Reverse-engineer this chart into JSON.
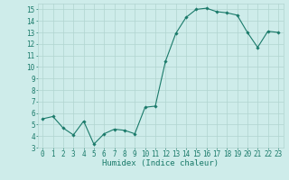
{
  "title": "",
  "xlabel": "Humidex (Indice chaleur)",
  "x_values": [
    0,
    1,
    2,
    3,
    4,
    5,
    6,
    7,
    8,
    9,
    10,
    11,
    12,
    13,
    14,
    15,
    16,
    17,
    18,
    19,
    20,
    21,
    22,
    23
  ],
  "y_values": [
    5.5,
    5.7,
    4.7,
    4.1,
    5.3,
    3.3,
    4.2,
    4.6,
    4.5,
    4.2,
    6.5,
    6.6,
    10.5,
    12.9,
    14.3,
    15.0,
    15.1,
    14.8,
    14.7,
    14.5,
    13.0,
    11.7,
    13.1,
    13.0
  ],
  "line_color": "#1a7a6a",
  "marker": "D",
  "marker_size": 1.8,
  "bg_color": "#ceecea",
  "grid_color": "#b0d4d0",
  "tick_color": "#1a7a6a",
  "label_color": "#1a7a6a",
  "ylim": [
    3,
    15.5
  ],
  "xlim": [
    -0.5,
    23.5
  ],
  "yticks": [
    3,
    4,
    5,
    6,
    7,
    8,
    9,
    10,
    11,
    12,
    13,
    14,
    15
  ],
  "xticks": [
    0,
    1,
    2,
    3,
    4,
    5,
    6,
    7,
    8,
    9,
    10,
    11,
    12,
    13,
    14,
    15,
    16,
    17,
    18,
    19,
    20,
    21,
    22,
    23
  ],
  "linewidth": 0.8,
  "axis_fontsize": 6.5,
  "tick_fontsize": 5.5
}
